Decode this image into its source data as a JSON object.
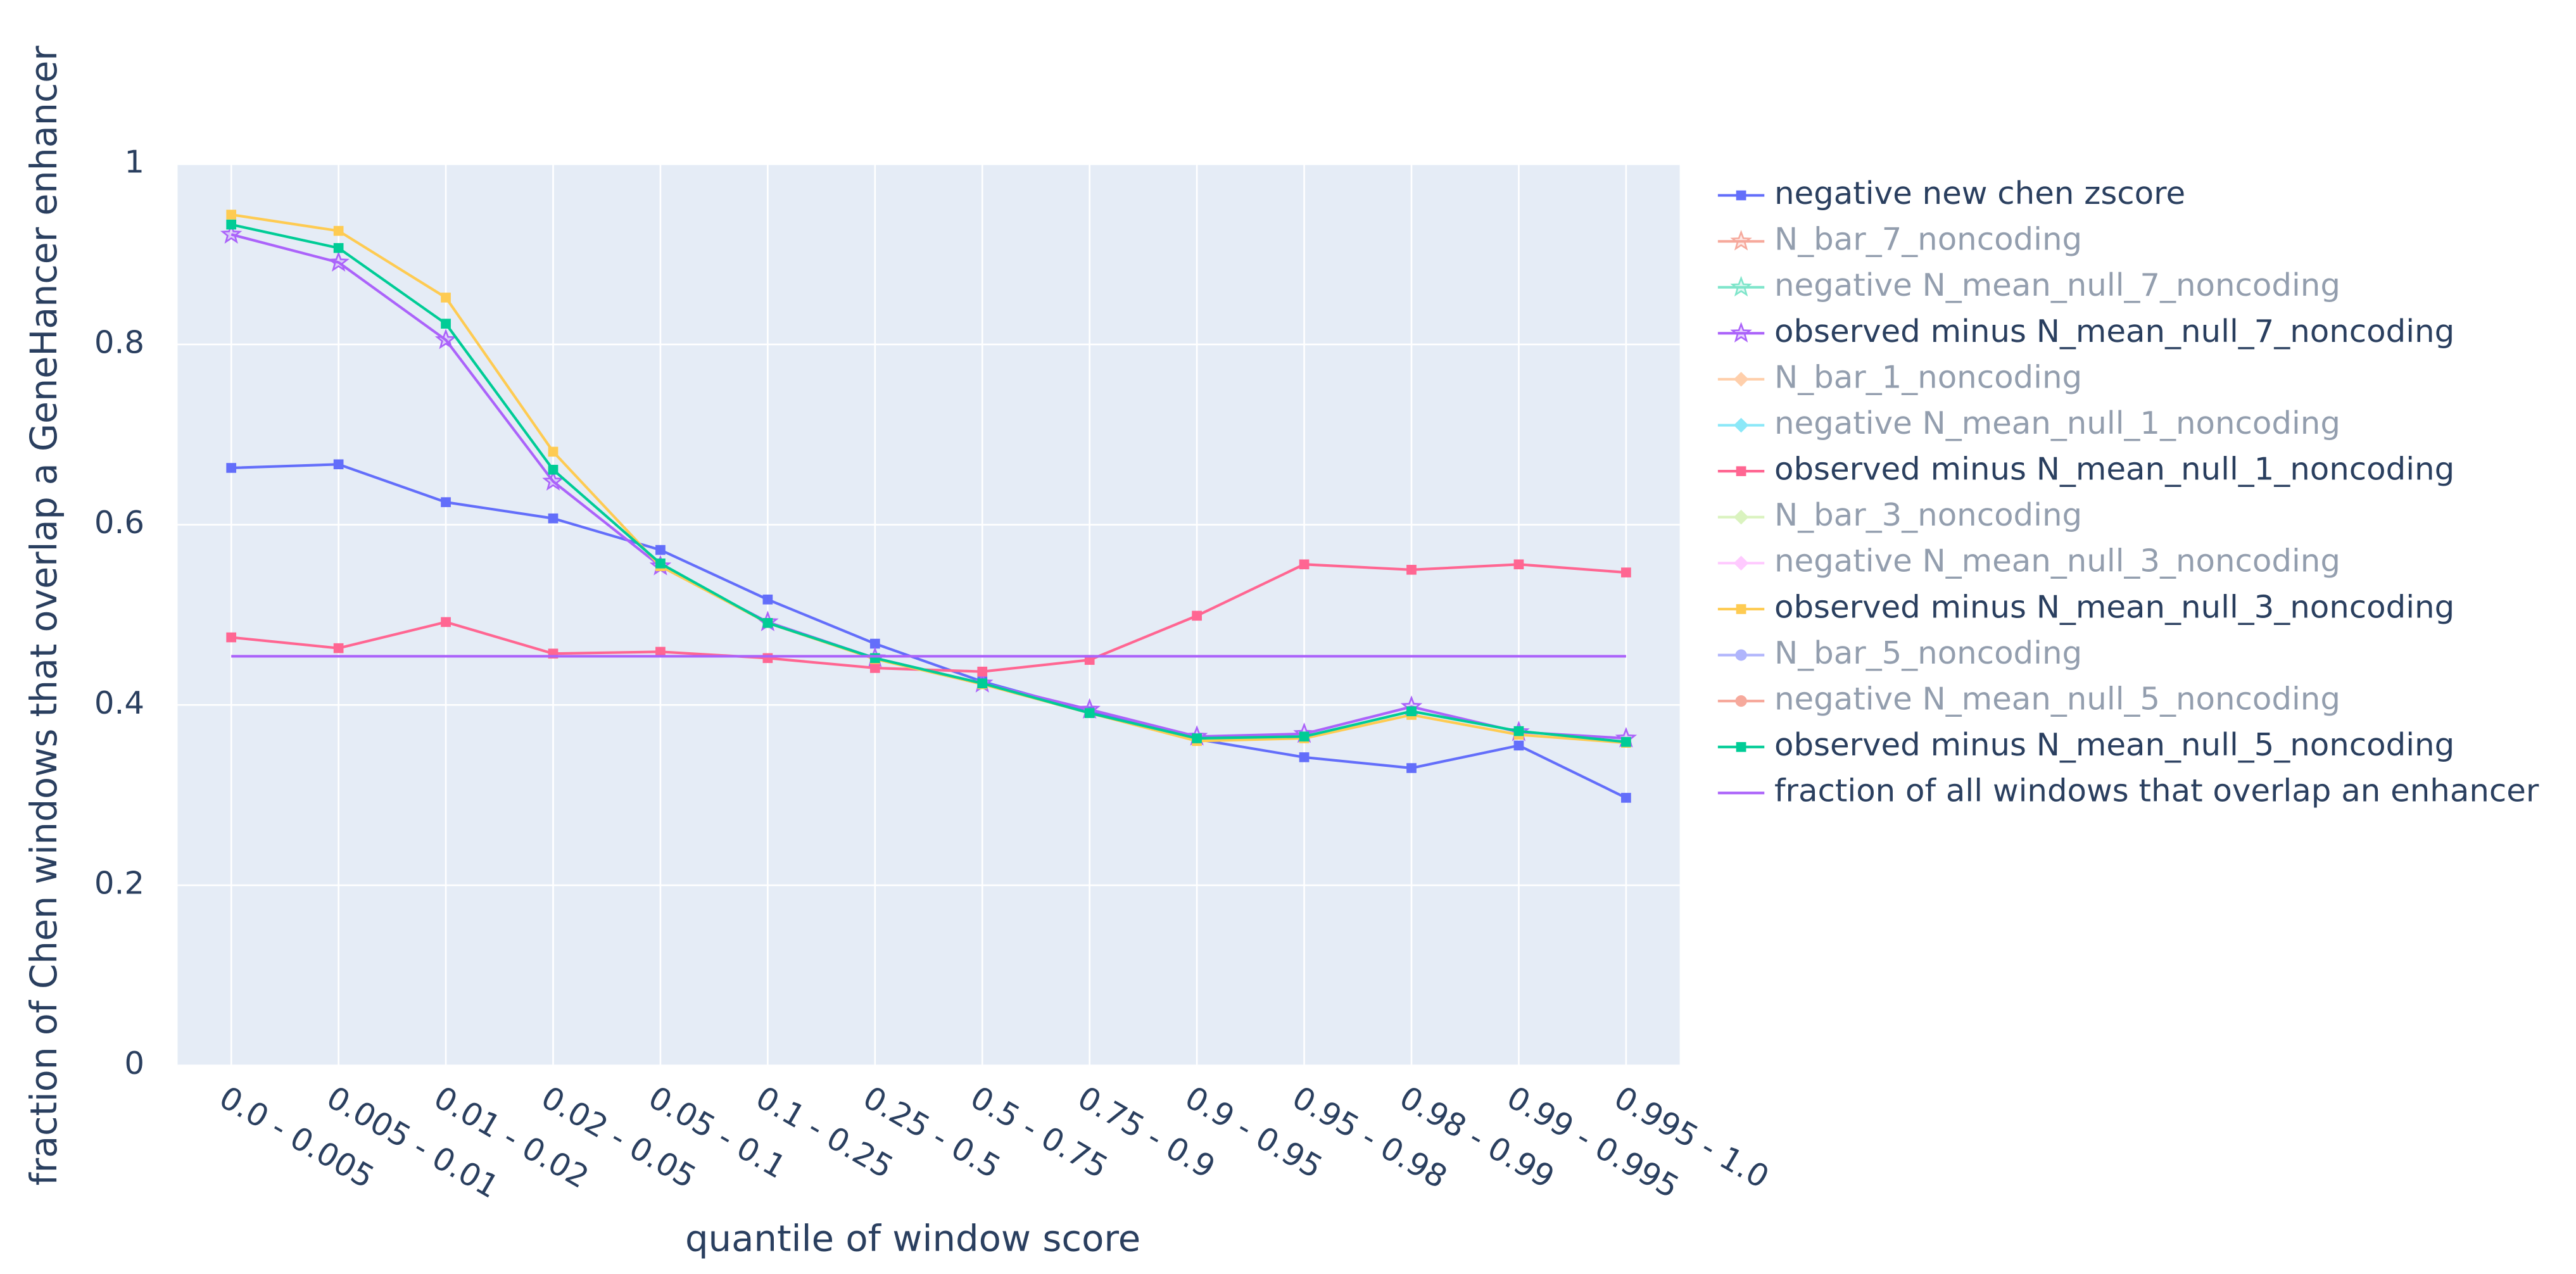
{
  "chart_data": {
    "type": "line",
    "xlabel": "quantile of window score",
    "ylabel": "fraction of Chen windows that overlap a GeneHancer enhancer",
    "categories": [
      "0.0 - 0.005",
      "0.005 - 0.01",
      "0.01 - 0.02",
      "0.02 - 0.05",
      "0.05 - 0.1",
      "0.1 - 0.25",
      "0.25 - 0.5",
      "0.5 - 0.75",
      "0.75 - 0.9",
      "0.9 - 0.95",
      "0.95 - 0.98",
      "0.98 - 0.99",
      "0.99 - 0.995",
      "0.995 - 1.0"
    ],
    "ylim": [
      0,
      1
    ],
    "yticks": [
      0,
      0.2,
      0.4,
      0.6,
      0.8,
      1
    ],
    "grid": true,
    "legend": "right",
    "series": [
      {
        "name": "negative new chen zscore",
        "color": "#636efa",
        "symbol": "square",
        "values": [
          0.663,
          0.667,
          0.625,
          0.607,
          0.572,
          0.517,
          0.468,
          0.426,
          0.393,
          0.362,
          0.342,
          0.33,
          0.355,
          0.297
        ]
      },
      {
        "name": "N_bar_7_noncoding",
        "color": "#EF553B",
        "symbol": "star",
        "visible": "legendonly"
      },
      {
        "name": "negative N_mean_null_7_noncoding",
        "color": "#00cc96",
        "symbol": "star",
        "visible": "legendonly"
      },
      {
        "name": "observed minus N_mean_null_7_noncoding",
        "color": "#ab63fa",
        "symbol": "star",
        "values": [
          0.922,
          0.891,
          0.805,
          0.648,
          0.554,
          0.492,
          0.452,
          0.424,
          0.395,
          0.365,
          0.368,
          0.398,
          0.37,
          0.363
        ]
      },
      {
        "name": "N_bar_1_noncoding",
        "color": "#FFA15A",
        "symbol": "diamond",
        "visible": "legendonly"
      },
      {
        "name": "negative N_mean_null_1_noncoding",
        "color": "#19d3f3",
        "symbol": "diamond",
        "visible": "legendonly"
      },
      {
        "name": "observed minus N_mean_null_1_noncoding",
        "color": "#FF6692",
        "symbol": "square",
        "values": [
          0.475,
          0.463,
          0.492,
          0.457,
          0.459,
          0.452,
          0.441,
          0.437,
          0.45,
          0.499,
          0.556,
          0.55,
          0.556,
          0.547
        ]
      },
      {
        "name": "N_bar_3_noncoding",
        "color": "#B6E880",
        "symbol": "diamond",
        "visible": "legendonly"
      },
      {
        "name": "negative N_mean_null_3_noncoding",
        "color": "#FF97FF",
        "symbol": "diamond",
        "visible": "legendonly"
      },
      {
        "name": "observed minus N_mean_null_3_noncoding",
        "color": "#FECB52",
        "symbol": "square",
        "values": [
          0.944,
          0.926,
          0.852,
          0.681,
          0.554,
          0.491,
          0.451,
          0.423,
          0.391,
          0.36,
          0.363,
          0.389,
          0.367,
          0.358
        ]
      },
      {
        "name": "N_bar_5_noncoding",
        "color": "#636efa",
        "symbol": "circle",
        "visible": "legendonly"
      },
      {
        "name": "negative N_mean_null_5_noncoding",
        "color": "#EF553B",
        "symbol": "circle",
        "visible": "legendonly"
      },
      {
        "name": "observed minus N_mean_null_5_noncoding",
        "color": "#00cc96",
        "symbol": "square",
        "values": [
          0.933,
          0.907,
          0.823,
          0.661,
          0.557,
          0.491,
          0.452,
          0.424,
          0.391,
          0.363,
          0.365,
          0.393,
          0.371,
          0.359
        ]
      },
      {
        "name": "fraction of all windows that overlap an enhancer",
        "color": "#ab63fa",
        "symbol": "none",
        "values": [
          0.454,
          0.454,
          0.454,
          0.454,
          0.454,
          0.454,
          0.454,
          0.454,
          0.454,
          0.454,
          0.454,
          0.454,
          0.454,
          0.454
        ]
      }
    ]
  }
}
